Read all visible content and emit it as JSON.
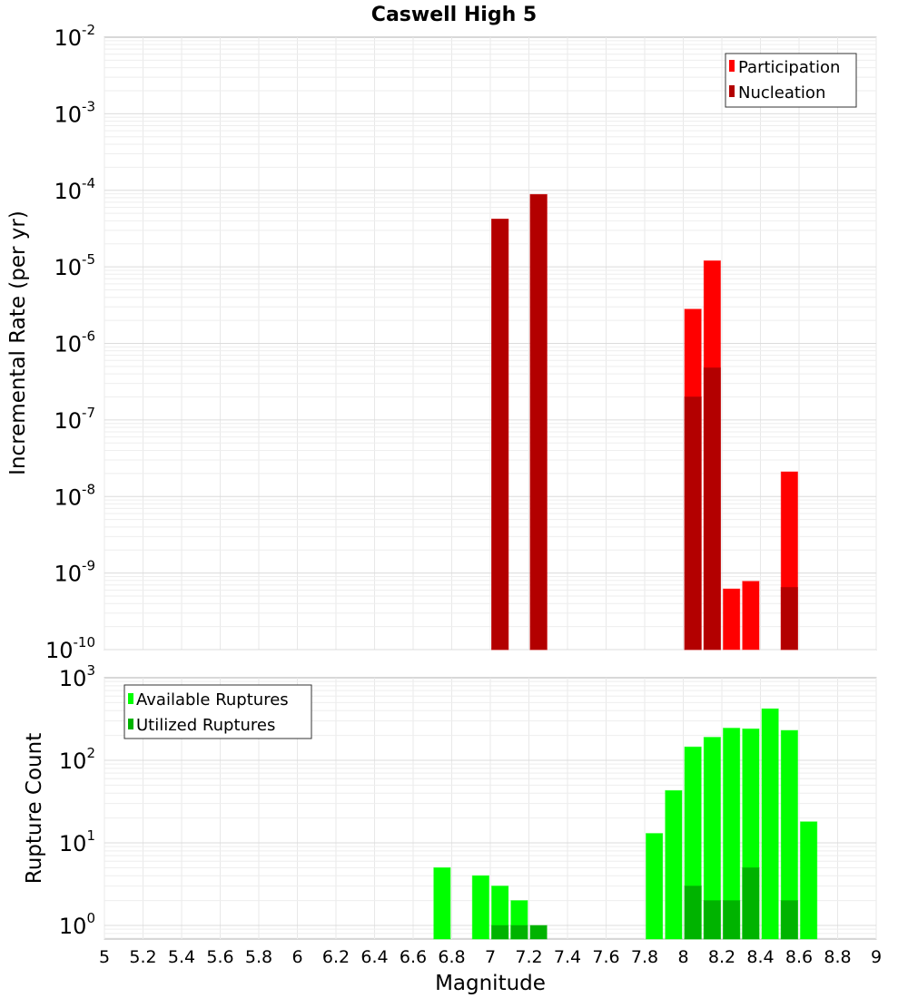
{
  "chart_data": [
    {
      "type": "bar",
      "title": "Caswell High 5",
      "xlabel": "Magnitude",
      "ylabel": "Incremental Rate (per yr)",
      "yscale": "log",
      "ylim": [
        1e-10,
        0.01
      ],
      "xlim": [
        5,
        9
      ],
      "grid": true,
      "legend_position": "top-right",
      "bin_width": 0.1,
      "series": [
        {
          "name": "Participation",
          "color": "#ff0000",
          "x": [
            7.05,
            7.25,
            8.05,
            8.15,
            8.25,
            8.35,
            8.55
          ],
          "values": [
            4.2e-05,
            8.8e-05,
            2.8e-06,
            1.2e-05,
            6.2e-10,
            7.8e-10,
            2.1e-08
          ]
        },
        {
          "name": "Nucleation",
          "color": "#b30000",
          "x": [
            7.05,
            7.25,
            8.05,
            8.15,
            8.55
          ],
          "values": [
            4.2e-05,
            8.8e-05,
            2e-07,
            4.8e-07,
            6.5e-10
          ]
        }
      ]
    },
    {
      "type": "bar",
      "title": "",
      "xlabel": "Magnitude",
      "ylabel": "Rupture Count",
      "yscale": "log",
      "ylim": [
        0.8,
        1000
      ],
      "xlim": [
        5,
        9
      ],
      "grid": true,
      "legend_position": "top-left",
      "bin_width": 0.1,
      "series": [
        {
          "name": "Available Ruptures",
          "color": "#00ff00",
          "x": [
            6.75,
            6.95,
            7.05,
            7.15,
            7.85,
            7.95,
            8.05,
            8.15,
            8.25,
            8.35,
            8.45,
            8.55,
            8.65
          ],
          "values": [
            5,
            4,
            3,
            2,
            13,
            43,
            145,
            190,
            245,
            240,
            420,
            230,
            18
          ]
        },
        {
          "name": "Utilized Ruptures",
          "color": "#00b300",
          "x": [
            7.05,
            7.15,
            7.25,
            8.05,
            8.15,
            8.25,
            8.35,
            8.55
          ],
          "values": [
            1,
            1,
            1,
            3,
            2,
            2,
            5,
            2
          ]
        }
      ]
    }
  ],
  "chart": {
    "title": "Caswell High 5",
    "top_ylabel": "Incremental Rate (per yr)",
    "bottom_ylabel": "Rupture Count",
    "xlabel": "Magnitude",
    "top_yticks": [
      "-2",
      "-3",
      "-4",
      "-5",
      "-6",
      "-7",
      "-8",
      "-9",
      "-10"
    ],
    "bottom_yticks": [
      "3",
      "2",
      "1",
      "0"
    ],
    "xticks": [
      "5",
      "5.2",
      "5.4",
      "5.6",
      "5.8",
      "6",
      "6.2",
      "6.4",
      "6.6",
      "6.8",
      "7",
      "7.2",
      "7.4",
      "7.6",
      "7.8",
      "8",
      "8.2",
      "8.4",
      "8.6",
      "8.8",
      "9"
    ],
    "top_legend": [
      "Participation",
      "Nucleation"
    ],
    "bottom_legend": [
      "Available Ruptures",
      "Utilized Ruptures"
    ]
  }
}
